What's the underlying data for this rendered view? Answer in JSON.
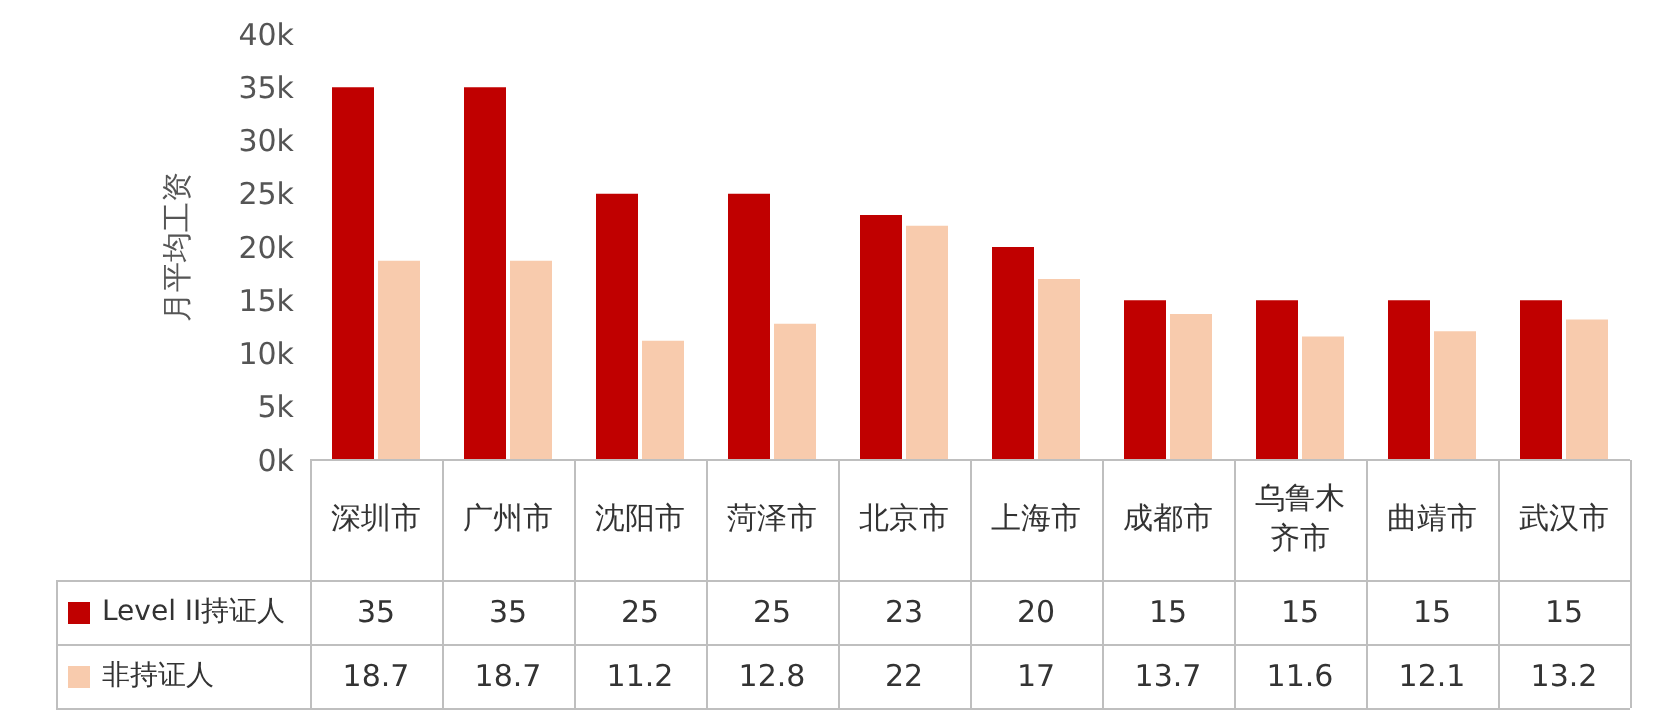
{
  "chart_data": {
    "type": "bar",
    "ylabel": "月平均工资",
    "categories": [
      "深圳市",
      "广州市",
      "沈阳市",
      "菏泽市",
      "北京市",
      "上海市",
      "成都市",
      "乌鲁木齐市",
      "曲靖市",
      "武汉市"
    ],
    "series": [
      {
        "name": "Level II持证人",
        "color": "#c00000",
        "values": [
          35,
          35,
          25,
          25,
          23,
          20,
          15,
          15,
          15,
          15
        ]
      },
      {
        "name": "非持证人",
        "color": "#f8cbad",
        "values": [
          18.7,
          18.7,
          11.2,
          12.8,
          22,
          17,
          13.7,
          11.6,
          12.1,
          13.2
        ]
      }
    ],
    "ylim": [
      0,
      40
    ],
    "yticks": [
      {
        "value": 0,
        "label": "0k"
      },
      {
        "value": 5,
        "label": "5k"
      },
      {
        "value": 10,
        "label": "10k"
      },
      {
        "value": 15,
        "label": "15k"
      },
      {
        "value": 20,
        "label": "20k"
      },
      {
        "value": 25,
        "label": "25k"
      },
      {
        "value": 30,
        "label": "30k"
      },
      {
        "value": 35,
        "label": "35k"
      },
      {
        "value": 40,
        "label": "40k"
      }
    ],
    "grid": false,
    "legend": "bottom left",
    "data_labels": true
  }
}
